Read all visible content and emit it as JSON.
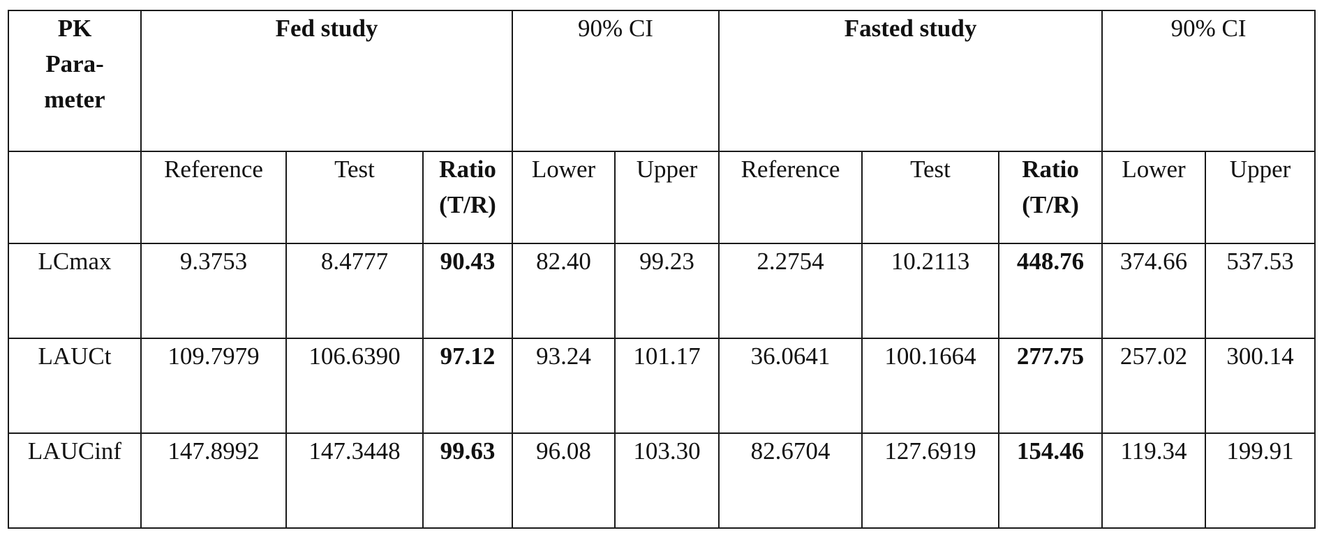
{
  "table": {
    "corner_lines": [
      "PK",
      "Para-",
      "meter"
    ],
    "group_headers": {
      "fed": "Fed study",
      "fed_ci": "90% CI",
      "fasted": "Fasted study",
      "fasted_ci": "90% CI"
    },
    "sub_headers": {
      "reference": "Reference",
      "test": "Test",
      "ratio_line1": "Ratio",
      "ratio_line2": "(T/R)",
      "lower": "Lower",
      "upper": "Upper"
    },
    "rows": [
      {
        "param": "LCmax",
        "fed": {
          "reference": "9.3753",
          "test": "8.4777",
          "ratio": "90.43",
          "lower": "82.40",
          "upper": "99.23"
        },
        "fasted": {
          "reference": "2.2754",
          "test": "10.2113",
          "ratio": "448.76",
          "lower": "374.66",
          "upper": "537.53"
        }
      },
      {
        "param": "LAUCt",
        "fed": {
          "reference": "109.7979",
          "test": "106.6390",
          "ratio": "97.12",
          "lower": "93.24",
          "upper": "101.17"
        },
        "fasted": {
          "reference": "36.0641",
          "test": "100.1664",
          "ratio": "277.75",
          "lower": "257.02",
          "upper": "300.14"
        }
      },
      {
        "param": "LAUCinf",
        "fed": {
          "reference": "147.8992",
          "test": "147.3448",
          "ratio": "99.63",
          "lower": "96.08",
          "upper": "103.30"
        },
        "fasted": {
          "reference": "82.6704",
          "test": "127.6919",
          "ratio": "154.46",
          "lower": "119.34",
          "upper": "199.91"
        }
      }
    ]
  }
}
